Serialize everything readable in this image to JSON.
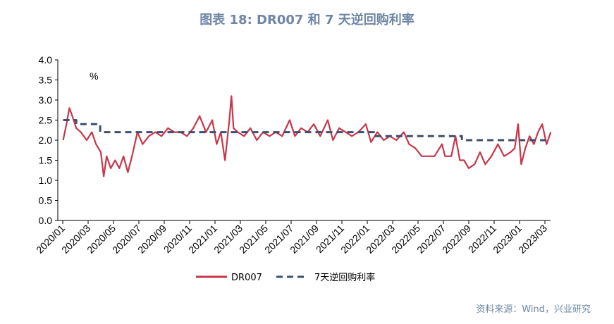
{
  "title": "图表 18: DR007 和 7 天逆回购利率",
  "source": "资料来源：Wind，兴业研究",
  "chart_data": {
    "type": "line",
    "title": "图表 18: DR007 和 7 天逆回购利率",
    "ylabel": "%",
    "ylim": [
      0,
      4
    ],
    "yticks": [
      "0.0",
      "0.5",
      "1.0",
      "1.5",
      "2.0",
      "2.5",
      "3.0",
      "3.5",
      "4.0"
    ],
    "xticks": [
      "2020/01",
      "2020/03",
      "2020/05",
      "2020/07",
      "2020/09",
      "2020/11",
      "2021/01",
      "2021/03",
      "2021/05",
      "2021/07",
      "2021/09",
      "2021/11",
      "2022/01",
      "2022/03",
      "2022/05",
      "2022/07",
      "2022/09",
      "2022/11",
      "2023/01",
      "2023/03"
    ],
    "grid": false,
    "legend_position": "bottom",
    "series": [
      {
        "name": "DR007",
        "color": "#c8364a",
        "style": "solid",
        "points": [
          [
            "2020-01-02",
            2.0
          ],
          [
            "2020-01-10",
            2.4
          ],
          [
            "2020-01-17",
            2.8
          ],
          [
            "2020-01-24",
            2.6
          ],
          [
            "2020-02-03",
            2.3
          ],
          [
            "2020-02-14",
            2.2
          ],
          [
            "2020-02-28",
            2.0
          ],
          [
            "2020-03-10",
            2.2
          ],
          [
            "2020-03-20",
            1.9
          ],
          [
            "2020-04-01",
            1.7
          ],
          [
            "2020-04-08",
            1.1
          ],
          [
            "2020-04-15",
            1.6
          ],
          [
            "2020-04-25",
            1.3
          ],
          [
            "2020-05-05",
            1.5
          ],
          [
            "2020-05-15",
            1.3
          ],
          [
            "2020-05-25",
            1.6
          ],
          [
            "2020-06-05",
            1.2
          ],
          [
            "2020-06-15",
            1.6
          ],
          [
            "2020-06-28",
            2.2
          ],
          [
            "2020-07-10",
            1.9
          ],
          [
            "2020-07-25",
            2.1
          ],
          [
            "2020-08-10",
            2.2
          ],
          [
            "2020-08-25",
            2.1
          ],
          [
            "2020-09-10",
            2.3
          ],
          [
            "2020-09-25",
            2.2
          ],
          [
            "2020-10-10",
            2.2
          ],
          [
            "2020-10-25",
            2.1
          ],
          [
            "2020-11-10",
            2.3
          ],
          [
            "2020-11-25",
            2.6
          ],
          [
            "2020-12-10",
            2.2
          ],
          [
            "2020-12-25",
            2.5
          ],
          [
            "2021-01-05",
            1.9
          ],
          [
            "2021-01-15",
            2.2
          ],
          [
            "2021-01-25",
            1.5
          ],
          [
            "2021-02-05",
            2.5
          ],
          [
            "2021-02-10",
            3.1
          ],
          [
            "2021-02-15",
            2.3
          ],
          [
            "2021-02-25",
            2.2
          ],
          [
            "2021-03-10",
            2.1
          ],
          [
            "2021-03-25",
            2.3
          ],
          [
            "2021-04-10",
            2.0
          ],
          [
            "2021-04-25",
            2.2
          ],
          [
            "2021-05-10",
            2.1
          ],
          [
            "2021-05-25",
            2.2
          ],
          [
            "2021-06-10",
            2.1
          ],
          [
            "2021-06-28",
            2.5
          ],
          [
            "2021-07-10",
            2.1
          ],
          [
            "2021-07-25",
            2.3
          ],
          [
            "2021-08-10",
            2.2
          ],
          [
            "2021-08-25",
            2.4
          ],
          [
            "2021-09-10",
            2.1
          ],
          [
            "2021-09-28",
            2.5
          ],
          [
            "2021-10-10",
            2.0
          ],
          [
            "2021-10-25",
            2.3
          ],
          [
            "2021-11-10",
            2.2
          ],
          [
            "2021-11-25",
            2.1
          ],
          [
            "2021-12-10",
            2.2
          ],
          [
            "2021-12-28",
            2.4
          ],
          [
            "2022-01-10",
            1.95
          ],
          [
            "2022-01-25",
            2.2
          ],
          [
            "2022-02-10",
            2.0
          ],
          [
            "2022-02-25",
            2.1
          ],
          [
            "2022-03-10",
            2.0
          ],
          [
            "2022-03-28",
            2.2
          ],
          [
            "2022-04-10",
            1.9
          ],
          [
            "2022-04-25",
            1.8
          ],
          [
            "2022-05-10",
            1.6
          ],
          [
            "2022-05-25",
            1.6
          ],
          [
            "2022-06-10",
            1.6
          ],
          [
            "2022-06-28",
            1.9
          ],
          [
            "2022-07-05",
            1.6
          ],
          [
            "2022-07-20",
            1.6
          ],
          [
            "2022-07-30",
            2.1
          ],
          [
            "2022-08-10",
            1.5
          ],
          [
            "2022-08-20",
            1.5
          ],
          [
            "2022-09-01",
            1.3
          ],
          [
            "2022-09-15",
            1.4
          ],
          [
            "2022-09-28",
            1.7
          ],
          [
            "2022-10-10",
            1.4
          ],
          [
            "2022-10-25",
            1.6
          ],
          [
            "2022-11-10",
            1.9
          ],
          [
            "2022-11-25",
            1.6
          ],
          [
            "2022-12-10",
            1.7
          ],
          [
            "2022-12-20",
            1.8
          ],
          [
            "2022-12-28",
            2.4
          ],
          [
            "2023-01-05",
            1.4
          ],
          [
            "2023-01-15",
            1.8
          ],
          [
            "2023-01-25",
            2.1
          ],
          [
            "2023-02-05",
            1.9
          ],
          [
            "2023-02-15",
            2.2
          ],
          [
            "2023-02-25",
            2.4
          ],
          [
            "2023-03-05",
            1.9
          ],
          [
            "2023-03-15",
            2.2
          ]
        ]
      },
      {
        "name": "7天逆回购利率",
        "color": "#3d4f6d",
        "style": "dashed",
        "step": true,
        "points": [
          [
            "2020-01-02",
            2.5
          ],
          [
            "2020-02-03",
            2.4
          ],
          [
            "2020-03-30",
            2.2
          ],
          [
            "2022-01-17",
            2.1
          ],
          [
            "2022-08-15",
            2.0
          ],
          [
            "2023-03-15",
            2.0
          ]
        ]
      }
    ]
  }
}
